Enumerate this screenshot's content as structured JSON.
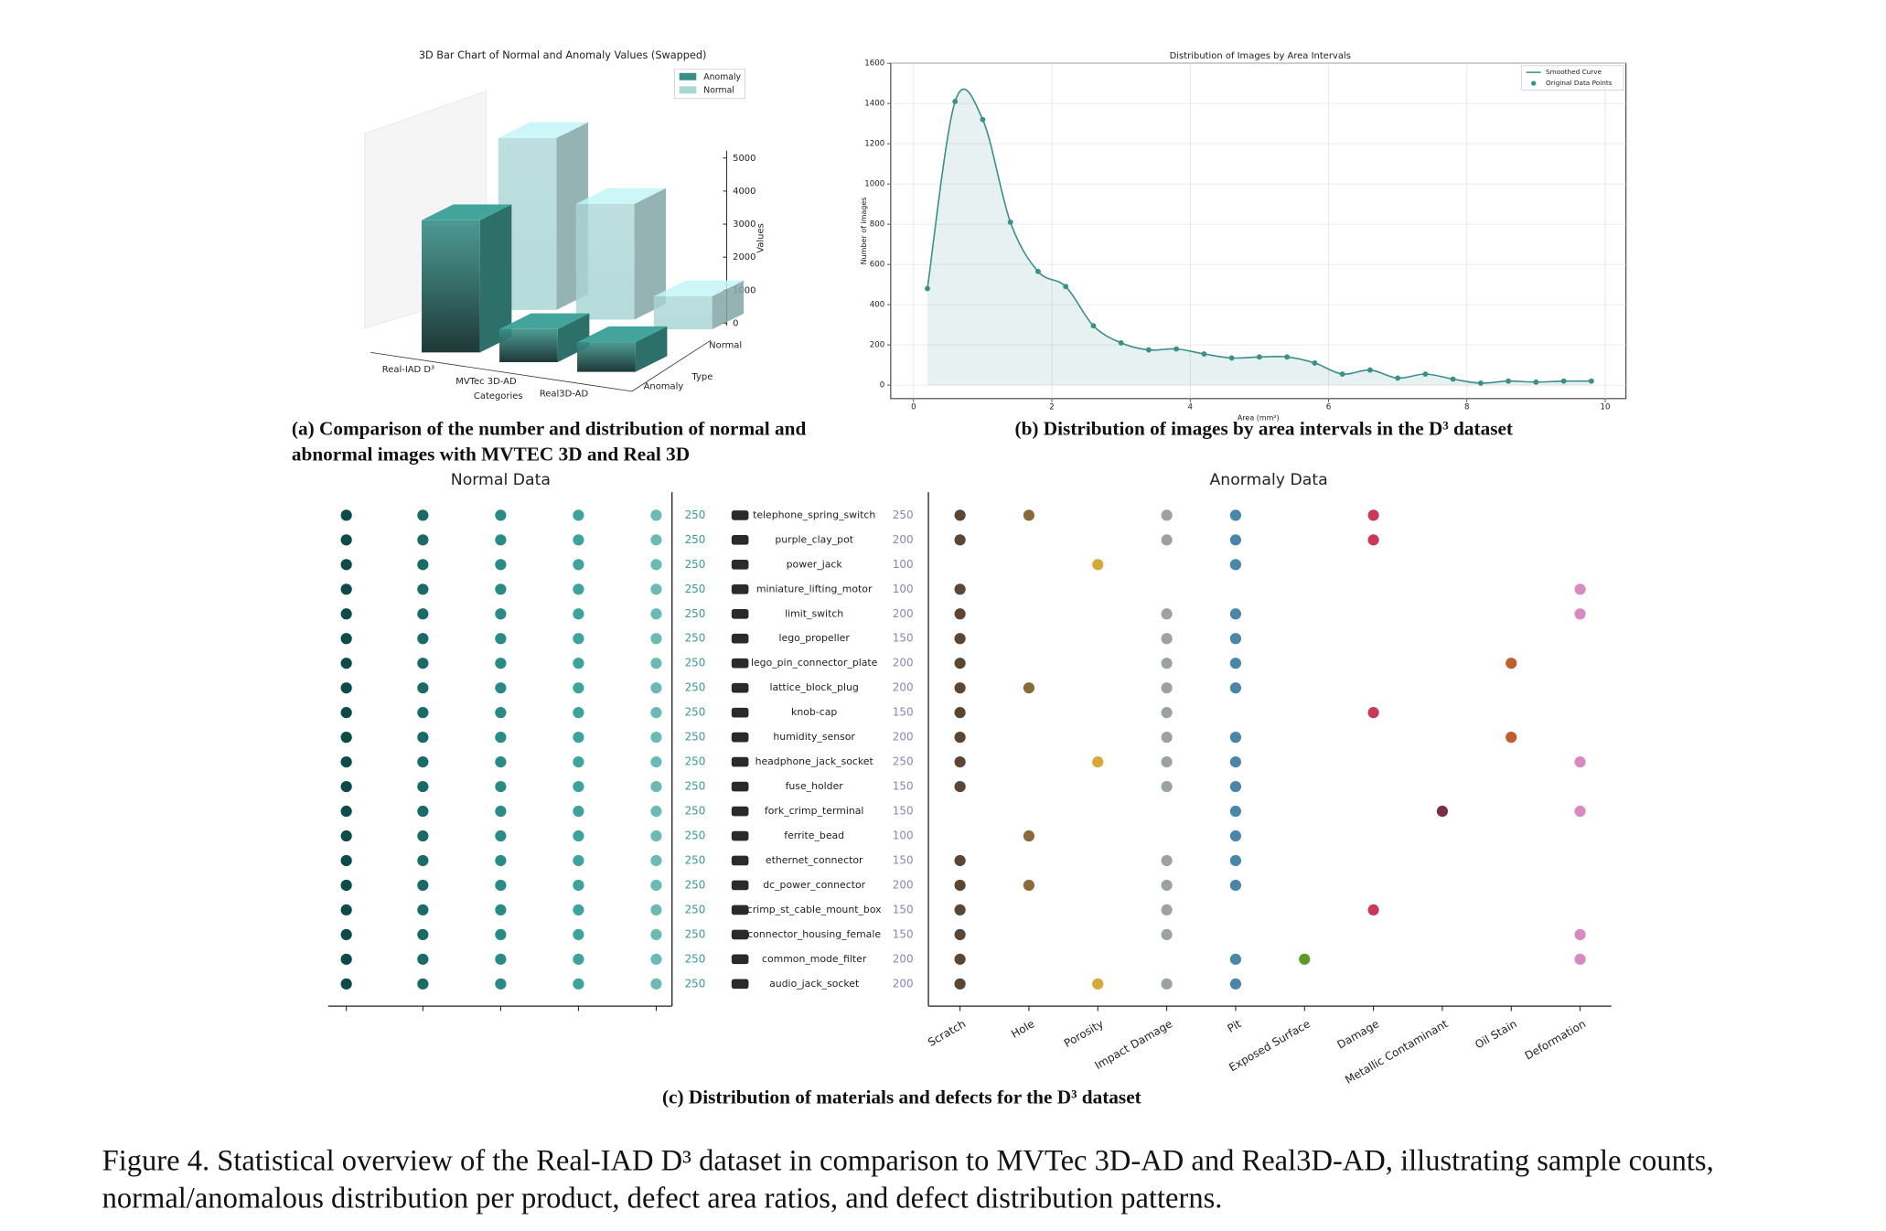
{
  "figure_caption": "Figure 4.  Statistical overview of the Real-IAD D³ dataset in comparison to MVTec 3D-AD and Real3D-AD, illustrating sample counts, normal/anomalous distribution per product, defect area ratios, and defect distribution patterns.",
  "chart_data": [
    {
      "type": "bar3d",
      "title": "3D Bar Chart of Normal and Anomaly Values (Swapped)",
      "categories": [
        "Real-IAD D³",
        "MVTec 3D-AD",
        "Real3D-AD"
      ],
      "xlabel": "Categories",
      "ylabel": "Type",
      "zlabel": "Values",
      "series": [
        {
          "name": "Anomaly",
          "color": "#3a8f88",
          "values": [
            4000,
            1000,
            900
          ]
        },
        {
          "name": "Normal",
          "color": "#a9d5d6",
          "values": [
            5200,
            3500,
            1000
          ]
        }
      ],
      "zlim": [
        0,
        5000
      ],
      "zticks": [
        0,
        1000,
        2000,
        3000,
        4000,
        5000
      ],
      "legend": "upper right",
      "caption": "(a) Comparison of the number and distribution of normal and abnormal images with MVTEC 3D and Real 3D"
    },
    {
      "type": "line",
      "title": "Distribution of Images by Area Intervals",
      "xlabel": "Area (mm²)",
      "ylabel": "Number of images",
      "x": [
        0.2,
        0.6,
        1,
        1.4,
        1.8,
        2.2,
        2.6,
        3,
        3.4,
        3.8,
        4.2,
        4.6,
        5,
        5.4,
        5.8,
        6.2,
        6.6,
        7,
        7.4,
        7.8,
        8.2,
        8.6,
        9,
        9.4,
        9.8
      ],
      "series": [
        {
          "name": "Original Data Points",
          "color": "#3a8f88",
          "values": [
            480,
            1410,
            1320,
            810,
            565,
            490,
            295,
            210,
            175,
            180,
            155,
            135,
            140,
            140,
            110,
            55,
            75,
            35,
            55,
            30,
            10,
            20,
            15,
            20,
            20
          ]
        }
      ],
      "curve_name": "Smoothed Curve",
      "xlim": [
        -0.33,
        10.3
      ],
      "ylim": [
        -67,
        1600
      ],
      "xticks": [
        0,
        2,
        4,
        6,
        8,
        10
      ],
      "yticks": [
        0,
        200,
        400,
        600,
        800,
        1000,
        1200,
        1400,
        1600
      ],
      "grid": true,
      "legend": "upper right",
      "caption": "(b) Distribution of images by area intervals in the D³ dataset"
    },
    {
      "type": "dot-matrix",
      "title_left": "Normal Data",
      "title_right": "Anormaly Data",
      "products": [
        "telephone_spring_switch",
        "purple_clay_pot",
        "power_jack",
        "miniature_lifting_motor",
        "limit_switch",
        "lego_propeller",
        "lego_pin_connector_plate",
        "lattice_block_plug",
        "knob-cap",
        "humidity_sensor",
        "headphone_jack_socket",
        "fuse_holder",
        "fork_crimp_terminal",
        "ferrite_bead",
        "ethernet_connector",
        "dc_power_connector",
        "crimp_st_cable_mount_box",
        "connector_housing_female",
        "common_mode_filter",
        "audio_jack_socket"
      ],
      "normal_counts": [
        250,
        250,
        250,
        250,
        250,
        250,
        250,
        250,
        250,
        250,
        250,
        250,
        250,
        250,
        250,
        250,
        250,
        250,
        250,
        250
      ],
      "anomaly_counts": [
        250,
        200,
        100,
        100,
        200,
        150,
        200,
        200,
        150,
        200,
        250,
        150,
        150,
        100,
        150,
        200,
        150,
        150,
        200,
        200
      ],
      "column_colors": [
        "#0d4a4a",
        "#1a6b66",
        "#2a8a85",
        "#3fa39d",
        "#6bbab5"
      ],
      "defects": [
        "Scratch",
        "Hole",
        "Porosity",
        "Impact Damage",
        "Pit",
        "Exposed Surface",
        "Damage",
        "Metallic Contaminant",
        "Oil Stain",
        "Deformation"
      ],
      "defect_colors": [
        "#5a4632",
        "#8b6a3a",
        "#d4a93a",
        "#9aa39f",
        "#4a86a8",
        "#5a9a2a",
        "#c83a5a",
        "#7a2e4a",
        "#c0602e",
        "#d88ac0"
      ],
      "matrix": [
        [
          1,
          1,
          0,
          1,
          1,
          0,
          1,
          0,
          0,
          0
        ],
        [
          1,
          0,
          0,
          1,
          1,
          0,
          1,
          0,
          0,
          0
        ],
        [
          0,
          0,
          1,
          0,
          1,
          0,
          0,
          0,
          0,
          0
        ],
        [
          1,
          0,
          0,
          0,
          0,
          0,
          0,
          0,
          0,
          1
        ],
        [
          1,
          0,
          0,
          1,
          1,
          0,
          0,
          0,
          0,
          1
        ],
        [
          1,
          0,
          0,
          1,
          1,
          0,
          0,
          0,
          0,
          0
        ],
        [
          1,
          0,
          0,
          1,
          1,
          0,
          0,
          0,
          1,
          0
        ],
        [
          1,
          1,
          0,
          1,
          1,
          0,
          0,
          0,
          0,
          0
        ],
        [
          1,
          0,
          0,
          1,
          0,
          0,
          1,
          0,
          0,
          0
        ],
        [
          1,
          0,
          0,
          1,
          1,
          0,
          0,
          0,
          1,
          0
        ],
        [
          1,
          0,
          1,
          1,
          1,
          0,
          0,
          0,
          0,
          1
        ],
        [
          1,
          0,
          0,
          1,
          1,
          0,
          0,
          0,
          0,
          0
        ],
        [
          0,
          0,
          0,
          0,
          1,
          0,
          0,
          1,
          0,
          1
        ],
        [
          0,
          1,
          0,
          0,
          1,
          0,
          0,
          0,
          0,
          0
        ],
        [
          1,
          0,
          0,
          1,
          1,
          0,
          0,
          0,
          0,
          0
        ],
        [
          1,
          1,
          0,
          1,
          1,
          0,
          0,
          0,
          0,
          0
        ],
        [
          1,
          0,
          0,
          1,
          0,
          0,
          1,
          0,
          0,
          0
        ],
        [
          1,
          0,
          0,
          1,
          0,
          0,
          0,
          0,
          0,
          1
        ],
        [
          1,
          0,
          0,
          0,
          1,
          1,
          0,
          0,
          0,
          1
        ],
        [
          1,
          0,
          1,
          1,
          1,
          0,
          0,
          0,
          0,
          0
        ]
      ],
      "caption": "(c) Distribution of materials and defects for the D³ dataset"
    }
  ]
}
